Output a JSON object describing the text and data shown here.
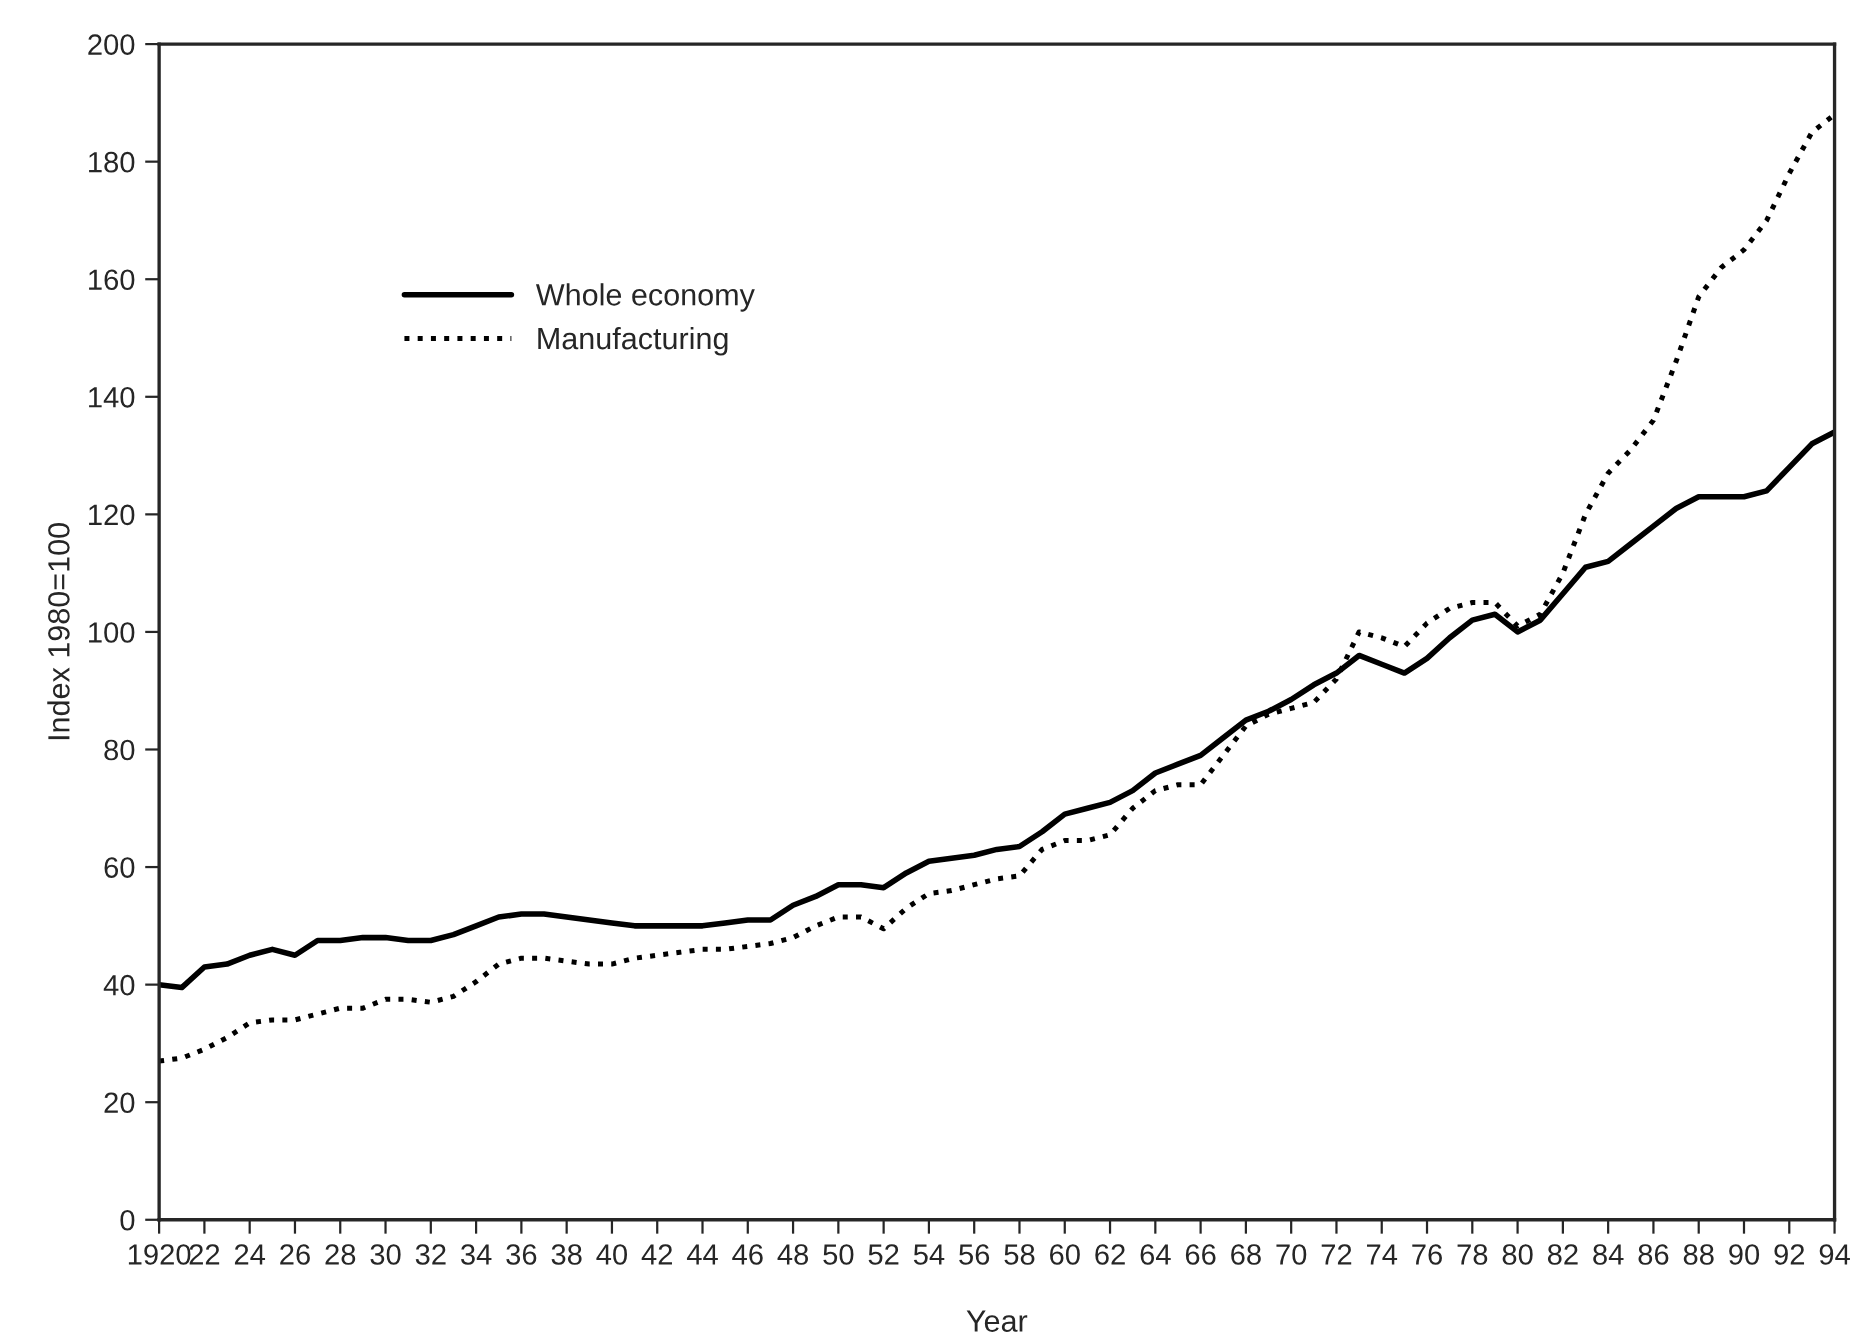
{
  "chart_data": {
    "type": "line",
    "xlabel": "Year",
    "ylabel": "Index 1980=100",
    "x": [
      1920,
      1921,
      1922,
      1923,
      1924,
      1925,
      1926,
      1927,
      1928,
      1929,
      1930,
      1931,
      1932,
      1933,
      1934,
      1935,
      1936,
      1937,
      1938,
      1939,
      1940,
      1941,
      1942,
      1943,
      1944,
      1945,
      1946,
      1947,
      1948,
      1949,
      1950,
      1951,
      1952,
      1953,
      1954,
      1955,
      1956,
      1957,
      1958,
      1959,
      1960,
      1961,
      1962,
      1963,
      1964,
      1965,
      1966,
      1967,
      1968,
      1969,
      1970,
      1971,
      1972,
      1973,
      1974,
      1975,
      1976,
      1977,
      1978,
      1979,
      1980,
      1981,
      1982,
      1983,
      1984,
      1985,
      1986,
      1987,
      1988,
      1989,
      1990,
      1991,
      1992,
      1993,
      1994
    ],
    "series": [
      {
        "name": "Whole economy",
        "color": "#000000",
        "line_style": "solid",
        "values": [
          40,
          39.5,
          43,
          43.5,
          45,
          46,
          45,
          47.5,
          47.5,
          48,
          48,
          47.5,
          47.5,
          48.5,
          50,
          51.5,
          52,
          52,
          51.5,
          51,
          50.5,
          50,
          50,
          50,
          50,
          50.5,
          51,
          51,
          53.5,
          55,
          57,
          57,
          56.5,
          59,
          61,
          61.5,
          62,
          63,
          63.5,
          66,
          69,
          70,
          71,
          73,
          76,
          77.5,
          79,
          82,
          85,
          86.5,
          88.5,
          91,
          93,
          96,
          94.5,
          93,
          95.5,
          99,
          102,
          103,
          100,
          102,
          106.5,
          111,
          112,
          115,
          118,
          121,
          123,
          123,
          123,
          124,
          128,
          132,
          134
        ]
      },
      {
        "name": "Manufacturing",
        "color": "#000000",
        "line_style": "dotted",
        "values": [
          27,
          27.5,
          29,
          31,
          33.5,
          34,
          34,
          35,
          36,
          36,
          37.5,
          37.5,
          37,
          38,
          40.5,
          43.5,
          44.5,
          44.5,
          44,
          43.5,
          43.5,
          44.5,
          45,
          45.5,
          46,
          46,
          46.5,
          47,
          48,
          50,
          51.5,
          51.5,
          49.5,
          53,
          55.5,
          56,
          57,
          58,
          58.5,
          63,
          64.5,
          64.5,
          65.5,
          70,
          73,
          74,
          74,
          79,
          84,
          86,
          87,
          88,
          92,
          100,
          99,
          97.5,
          101.5,
          104,
          105,
          105,
          101,
          103,
          110,
          120,
          127,
          131,
          136,
          146,
          157,
          162,
          165,
          170,
          178,
          185,
          188
        ]
      }
    ],
    "xlim": [
      1920,
      1994
    ],
    "xticks": [
      {
        "value": 1920,
        "label": "1920"
      },
      {
        "value": 1922,
        "label": "22"
      },
      {
        "value": 1924,
        "label": "24"
      },
      {
        "value": 1926,
        "label": "26"
      },
      {
        "value": 1928,
        "label": "28"
      },
      {
        "value": 1930,
        "label": "30"
      },
      {
        "value": 1932,
        "label": "32"
      },
      {
        "value": 1934,
        "label": "34"
      },
      {
        "value": 1936,
        "label": "36"
      },
      {
        "value": 1938,
        "label": "38"
      },
      {
        "value": 1940,
        "label": "40"
      },
      {
        "value": 1942,
        "label": "42"
      },
      {
        "value": 1944,
        "label": "44"
      },
      {
        "value": 1946,
        "label": "46"
      },
      {
        "value": 1948,
        "label": "48"
      },
      {
        "value": 1950,
        "label": "50"
      },
      {
        "value": 1952,
        "label": "52"
      },
      {
        "value": 1954,
        "label": "54"
      },
      {
        "value": 1956,
        "label": "56"
      },
      {
        "value": 1958,
        "label": "58"
      },
      {
        "value": 1960,
        "label": "60"
      },
      {
        "value": 1962,
        "label": "62"
      },
      {
        "value": 1964,
        "label": "64"
      },
      {
        "value": 1966,
        "label": "66"
      },
      {
        "value": 1968,
        "label": "68"
      },
      {
        "value": 1970,
        "label": "70"
      },
      {
        "value": 1972,
        "label": "72"
      },
      {
        "value": 1974,
        "label": "74"
      },
      {
        "value": 1976,
        "label": "76"
      },
      {
        "value": 1978,
        "label": "78"
      },
      {
        "value": 1980,
        "label": "80"
      },
      {
        "value": 1982,
        "label": "82"
      },
      {
        "value": 1984,
        "label": "84"
      },
      {
        "value": 1986,
        "label": "86"
      },
      {
        "value": 1988,
        "label": "88"
      },
      {
        "value": 1990,
        "label": "90"
      },
      {
        "value": 1992,
        "label": "92"
      },
      {
        "value": 1994,
        "label": "94"
      }
    ],
    "ylim": [
      0,
      200
    ],
    "yticks": [
      0,
      20,
      40,
      60,
      80,
      100,
      120,
      140,
      160,
      180,
      200
    ],
    "grid": false,
    "legend": "top left"
  }
}
